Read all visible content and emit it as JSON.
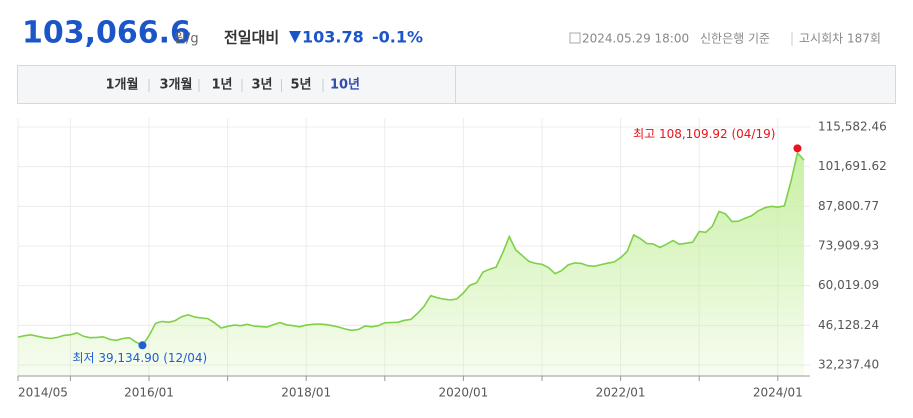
{
  "header": {
    "price": "103,066.6",
    "unit": "원/g",
    "change_label": "전일대비",
    "change": "103.78",
    "change_rate": "-0.1%",
    "datetime": "2024.05.29 18:00",
    "source": "신한은행 기준",
    "round": "고시회차 187회"
  },
  "tabs": {
    "items": [
      "1개월",
      "3개월",
      "1년",
      "3년",
      "5년",
      "10년"
    ],
    "active": 5
  },
  "chart_data": {
    "type": "line",
    "color": "#7ed049",
    "fill": "#c9f0a4",
    "x": [
      "2014/05",
      "2014/06",
      "2014/07",
      "2014/08",
      "2014/09",
      "2014/10",
      "2014/11",
      "2014/12",
      "2015/01",
      "2015/02",
      "2015/03",
      "2015/04",
      "2015/05",
      "2015/06",
      "2015/07",
      "2015/08",
      "2015/09",
      "2015/10",
      "2015/11",
      "2015/12",
      "2016/01",
      "2016/02",
      "2016/03",
      "2016/04",
      "2016/05",
      "2016/06",
      "2016/07",
      "2016/08",
      "2016/09",
      "2016/10",
      "2016/11",
      "2016/12",
      "2017/01",
      "2017/02",
      "2017/03",
      "2017/04",
      "2017/05",
      "2017/06",
      "2017/07",
      "2017/08",
      "2017/09",
      "2017/10",
      "2017/11",
      "2017/12",
      "2018/01",
      "2018/02",
      "2018/03",
      "2018/04",
      "2018/05",
      "2018/06",
      "2018/07",
      "2018/08",
      "2018/09",
      "2018/10",
      "2018/11",
      "2018/12",
      "2019/01",
      "2019/02",
      "2019/03",
      "2019/04",
      "2019/05",
      "2019/06",
      "2019/07",
      "2019/08",
      "2019/09",
      "2019/10",
      "2019/11",
      "2019/12",
      "2020/01",
      "2020/02",
      "2020/03",
      "2020/04",
      "2020/05",
      "2020/06",
      "2020/07",
      "2020/08",
      "2020/09",
      "2020/10",
      "2020/11",
      "2020/12",
      "2021/01",
      "2021/02",
      "2021/03",
      "2021/04",
      "2021/05",
      "2021/06",
      "2021/07",
      "2021/08",
      "2021/09",
      "2021/10",
      "2021/11",
      "2021/12",
      "2022/01",
      "2022/02",
      "2022/03",
      "2022/04",
      "2022/05",
      "2022/06",
      "2022/07",
      "2022/08",
      "2022/09",
      "2022/10",
      "2022/11",
      "2022/12",
      "2023/01",
      "2023/02",
      "2023/03",
      "2023/04",
      "2023/05",
      "2023/06",
      "2023/07",
      "2023/08",
      "2023/09",
      "2023/10",
      "2023/11",
      "2023/12",
      "2024/01",
      "2024/02",
      "2024/03",
      "2024/04",
      "2024/05"
    ],
    "values": [
      42000,
      42500,
      42800,
      42300,
      41800,
      41500,
      41900,
      42600,
      42800,
      43500,
      42300,
      41800,
      41900,
      42100,
      41200,
      40900,
      41500,
      41800,
      40300,
      39134.9,
      42500,
      46800,
      47500,
      47200,
      47800,
      49200,
      49800,
      49000,
      48700,
      48500,
      47000,
      45200,
      45800,
      46200,
      46000,
      46500,
      45900,
      45700,
      45500,
      46400,
      47100,
      46300,
      46000,
      45600,
      46200,
      46500,
      46600,
      46400,
      46000,
      45500,
      44800,
      44400,
      44700,
      45900,
      45600,
      46000,
      47000,
      47100,
      47200,
      47900,
      48200,
      50300,
      52800,
      56500,
      55800,
      55300,
      55000,
      55400,
      57500,
      60200,
      61000,
      64800,
      65800,
      66500,
      71500,
      77200,
      72500,
      70500,
      68500,
      67800,
      67500,
      66300,
      64200,
      65300,
      67300,
      68000,
      67800,
      67000,
      66800,
      67400,
      67900,
      68300,
      69800,
      72000,
      77800,
      76500,
      74800,
      74600,
      73400,
      74500,
      75800,
      74500,
      74900,
      75200,
      79000,
      78700,
      80800,
      86000,
      85200,
      82500,
      82600,
      83600,
      84500,
      86200,
      87300,
      87800,
      87500,
      88000,
      96500,
      106500,
      104000
    ],
    "xlim": [
      "2014/05",
      "2024/05"
    ],
    "xticks": [
      {
        "value": "2014/05",
        "label": "2014/05"
      },
      {
        "value": "2015/01",
        "label": null
      },
      {
        "value": "2016/01",
        "label": "2016/01"
      },
      {
        "value": "2017/01",
        "label": null
      },
      {
        "value": "2018/01",
        "label": "2018/01"
      },
      {
        "value": "2019/01",
        "label": null
      },
      {
        "value": "2020/01",
        "label": "2020/01"
      },
      {
        "value": "2021/01",
        "label": null
      },
      {
        "value": "2022/01",
        "label": "2022/01"
      },
      {
        "value": "2023/01",
        "label": null
      },
      {
        "value": "2024/01",
        "label": "2024/01"
      }
    ],
    "ylim": [
      32237.4,
      115582.46
    ],
    "yticks": [
      {
        "value": 32237.4,
        "label": "32,237.40"
      },
      {
        "value": 46128.24,
        "label": "46,128.24"
      },
      {
        "value": 60019.09,
        "label": "60,019.09"
      },
      {
        "value": 73909.93,
        "label": "73,909.93"
      },
      {
        "value": 87800.77,
        "label": "87,800.77"
      },
      {
        "value": 101691.62,
        "label": "101,691.62"
      },
      {
        "value": 115582.46,
        "label": "115,582.46"
      }
    ],
    "grid": true,
    "annotations": [
      {
        "text": "최고 108,109.92 (04/19)",
        "x": "2024/04",
        "value": 108109.92,
        "color": "#e8141a"
      },
      {
        "text": "최저 39,134.90 (12/04)",
        "x": "2015/12",
        "value": 39134.9,
        "color": "#1f5fcf"
      }
    ]
  }
}
